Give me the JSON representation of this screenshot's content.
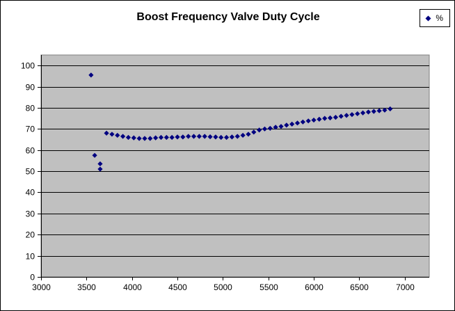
{
  "title": "Boost Frequency Valve Duty Cycle",
  "legend": {
    "position": "top-right",
    "items": [
      {
        "label": "%",
        "marker": "diamond",
        "marker_color": "#000080"
      }
    ]
  },
  "colors": {
    "chart_background": "#FFFFFF",
    "chart_border": "#000000",
    "plot_background": "#C0C0C0",
    "plot_border": "#808080",
    "gridline": "#000000",
    "axis": "#000000",
    "marker": "#000080"
  },
  "chart_data": {
    "type": "scatter",
    "title": "Boost Frequency Valve Duty Cycle",
    "xlabel": "",
    "ylabel": "",
    "xlim": [
      3000,
      7270
    ],
    "ylim": [
      0,
      105
    ],
    "x_ticks": [
      3000,
      3500,
      4000,
      4500,
      5000,
      5500,
      6000,
      6500,
      7000
    ],
    "y_ticks": [
      0,
      10,
      20,
      30,
      40,
      50,
      60,
      70,
      80,
      90,
      100
    ],
    "grid": "horizontal",
    "legend_position": "top-right",
    "series": [
      {
        "name": "%",
        "marker": "diamond",
        "color": "#000080",
        "points": [
          [
            3550,
            95.5
          ],
          [
            3590,
            57.5
          ],
          [
            3650,
            53.5
          ],
          [
            3650,
            51
          ],
          [
            3720,
            68
          ],
          [
            3780,
            67.5
          ],
          [
            3840,
            67
          ],
          [
            3900,
            66.5
          ],
          [
            3960,
            66
          ],
          [
            4020,
            65.8
          ],
          [
            4080,
            65.5
          ],
          [
            4140,
            65.5
          ],
          [
            4200,
            65.5
          ],
          [
            4260,
            65.8
          ],
          [
            4320,
            66
          ],
          [
            4380,
            66
          ],
          [
            4440,
            66
          ],
          [
            4500,
            66.2
          ],
          [
            4560,
            66.2
          ],
          [
            4620,
            66.5
          ],
          [
            4680,
            66.5
          ],
          [
            4740,
            66.5
          ],
          [
            4800,
            66.5
          ],
          [
            4860,
            66.3
          ],
          [
            4920,
            66.2
          ],
          [
            4980,
            66
          ],
          [
            5040,
            66
          ],
          [
            5100,
            66.2
          ],
          [
            5160,
            66.5
          ],
          [
            5220,
            67
          ],
          [
            5280,
            67.5
          ],
          [
            5340,
            68.5
          ],
          [
            5400,
            69.5
          ],
          [
            5460,
            70
          ],
          [
            5520,
            70.3
          ],
          [
            5580,
            70.8
          ],
          [
            5640,
            71.2
          ],
          [
            5700,
            71.8
          ],
          [
            5760,
            72.3
          ],
          [
            5820,
            72.8
          ],
          [
            5880,
            73.3
          ],
          [
            5940,
            73.8
          ],
          [
            6000,
            74.2
          ],
          [
            6060,
            74.6
          ],
          [
            6120,
            75
          ],
          [
            6180,
            75.2
          ],
          [
            6240,
            75.5
          ],
          [
            6300,
            76
          ],
          [
            6360,
            76.4
          ],
          [
            6420,
            76.8
          ],
          [
            6480,
            77.2
          ],
          [
            6540,
            77.6
          ],
          [
            6600,
            78
          ],
          [
            6660,
            78.3
          ],
          [
            6720,
            78.6
          ],
          [
            6780,
            78.9
          ],
          [
            6840,
            79.5
          ]
        ]
      }
    ]
  }
}
